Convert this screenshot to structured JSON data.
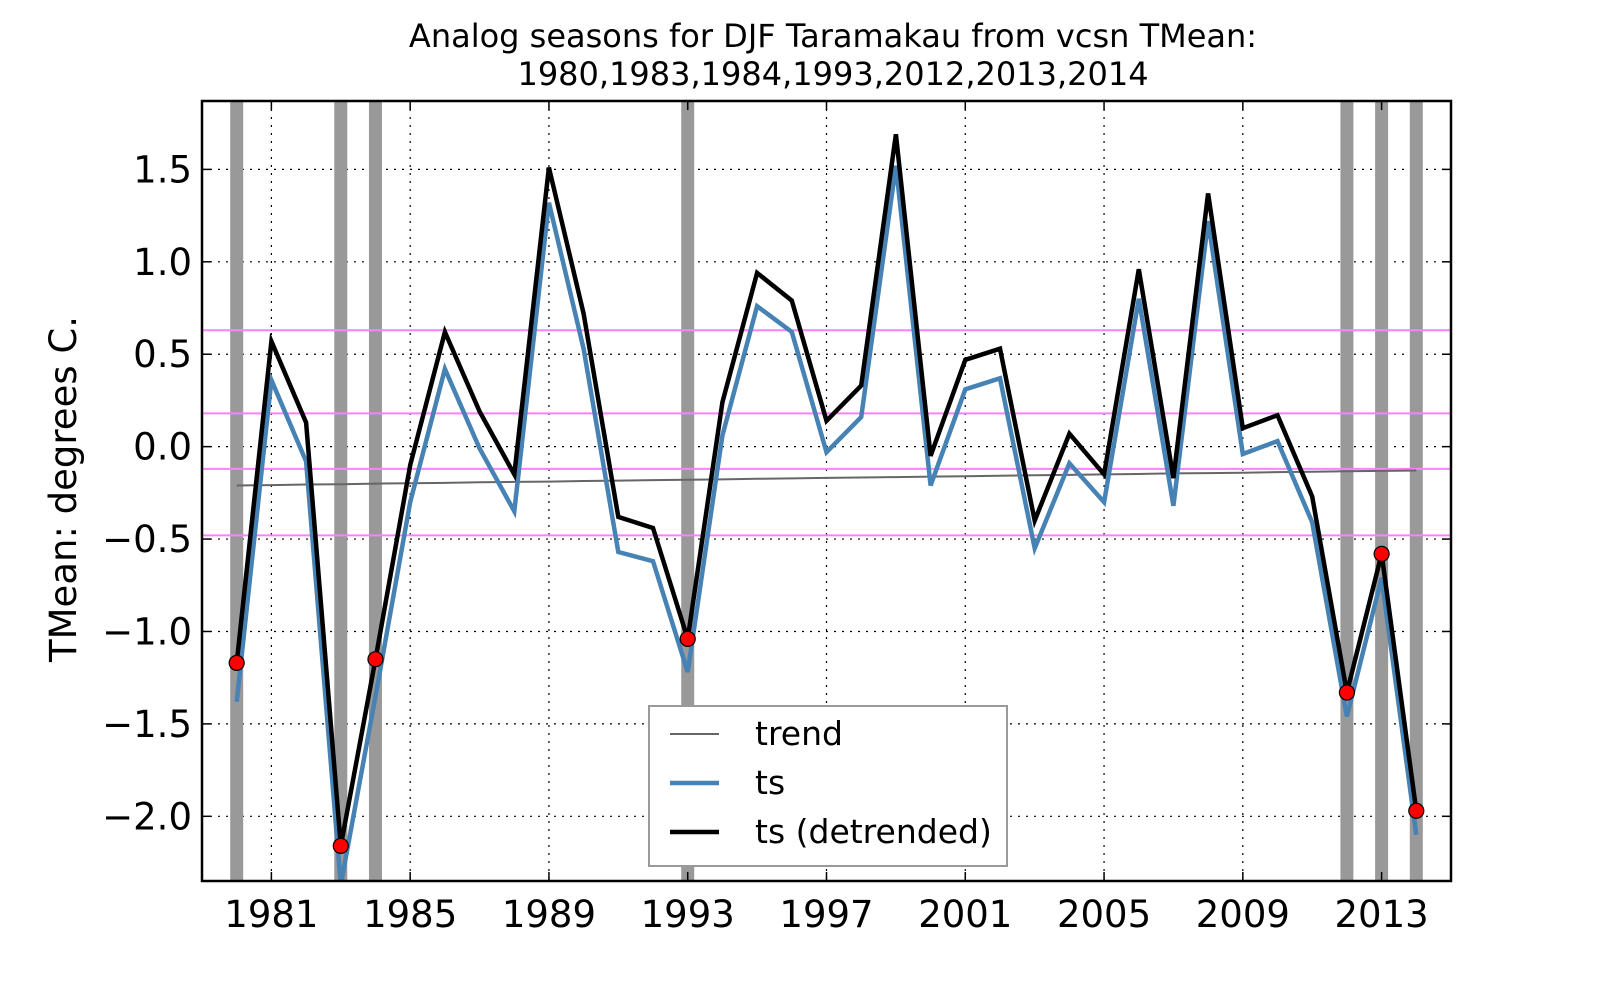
{
  "chart_data": {
    "type": "line",
    "title": "Analog seasons for DJF Taramakau from vcsn TMean:",
    "subtitle": "1980,1983,1984,1993,2012,2013,2014",
    "xlabel": "",
    "ylabel": "TMean: degrees C.",
    "xlim": [
      1979,
      2015
    ],
    "ylim": [
      -2.35,
      1.87
    ],
    "x_ticks": [
      1981,
      1985,
      1989,
      1993,
      1997,
      2001,
      2005,
      2009,
      2013
    ],
    "y_ticks": [
      1.5,
      1.0,
      0.5,
      0.0,
      -0.5,
      -1.0,
      -1.5,
      -2.0
    ],
    "y_tick_labels": [
      "1.5",
      "1.0",
      "0.5",
      "0.0",
      "−0.5",
      "−1.0",
      "−1.5",
      "−2.0"
    ],
    "grid": true,
    "grid_style": "dotted",
    "legend_position": "bottom-center",
    "x": [
      1980,
      1981,
      1982,
      1983,
      1984,
      1985,
      1986,
      1987,
      1988,
      1989,
      1990,
      1991,
      1992,
      1993,
      1994,
      1995,
      1996,
      1997,
      1998,
      1999,
      2000,
      2001,
      2002,
      2003,
      2004,
      2005,
      2006,
      2007,
      2008,
      2009,
      2010,
      2011,
      2012,
      2013,
      2014
    ],
    "series": [
      {
        "name": "trend",
        "color": "#666666",
        "stroke_width": 2,
        "values": [
          -0.21,
          -0.208,
          -0.205,
          -0.203,
          -0.2,
          -0.198,
          -0.196,
          -0.193,
          -0.191,
          -0.189,
          -0.186,
          -0.184,
          -0.181,
          -0.179,
          -0.177,
          -0.174,
          -0.172,
          -0.169,
          -0.167,
          -0.165,
          -0.162,
          -0.16,
          -0.157,
          -0.155,
          -0.153,
          -0.15,
          -0.148,
          -0.145,
          -0.143,
          -0.141,
          -0.138,
          -0.136,
          -0.133,
          -0.131,
          -0.129
        ]
      },
      {
        "name": "ts",
        "color": "#4682b4",
        "stroke_width": 4.5,
        "values": [
          -1.38,
          0.36,
          -0.08,
          -2.37,
          -1.35,
          -0.3,
          0.42,
          -0.01,
          -0.35,
          1.32,
          0.53,
          -0.57,
          -0.62,
          -1.22,
          0.06,
          0.76,
          0.62,
          -0.03,
          0.16,
          1.52,
          -0.21,
          0.31,
          0.37,
          -0.55,
          -0.09,
          -0.3,
          0.8,
          -0.32,
          1.22,
          -0.04,
          0.03,
          -0.41,
          -1.46,
          -0.71,
          -2.1
        ]
      },
      {
        "name": "ts (detrended)",
        "color": "#000000",
        "stroke_width": 4.5,
        "values": [
          -1.17,
          0.57,
          0.13,
          -2.16,
          -1.15,
          -0.1,
          0.62,
          0.19,
          -0.15,
          1.51,
          0.72,
          -0.38,
          -0.44,
          -1.04,
          0.24,
          0.94,
          0.79,
          0.14,
          0.33,
          1.69,
          -0.05,
          0.47,
          0.53,
          -0.4,
          0.07,
          -0.15,
          0.96,
          -0.17,
          1.37,
          0.1,
          0.17,
          -0.27,
          -1.33,
          -0.58,
          -1.97
        ]
      }
    ],
    "analog_years": [
      1980,
      1983,
      1984,
      1993,
      2012,
      2013,
      2014
    ],
    "analog_band_color": "#999999",
    "analog_marker_color": "#ff0000",
    "threshold_lines": [
      0.63,
      0.18,
      -0.12,
      -0.48
    ],
    "threshold_color": "#ff80ff"
  }
}
